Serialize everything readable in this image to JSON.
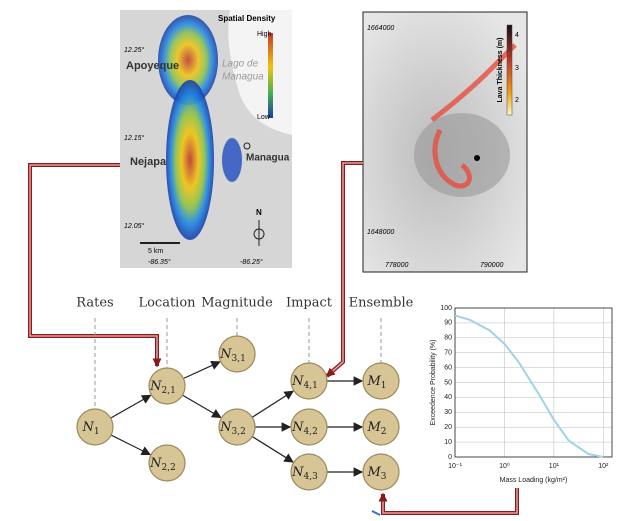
{
  "maps": [
    {
      "title": "Spatial Density",
      "high": "High",
      "low": "Low",
      "lat_ticks": [
        "12.25°",
        "12.15°",
        "12.05°"
      ],
      "lon_ticks": [
        "-86.35°",
        "-86.25°"
      ],
      "places": [
        "Apoyeque",
        "Lago de",
        "Managua",
        "Nejapa",
        "Managua"
      ],
      "scale": "5 km",
      "north": "N"
    },
    {
      "y_ticks": [
        "1664000",
        "1648000"
      ],
      "x_ticks": [
        "778000",
        "790000"
      ],
      "colorbar_title": "Lava Thickness (m)",
      "colorbar_ticks": [
        "4",
        "3",
        "2"
      ]
    }
  ],
  "network": {
    "columns": [
      "Rates",
      "Location",
      "Magnitude",
      "Impact",
      "Ensemble"
    ],
    "nodes": [
      {
        "base": "N",
        "sub": "1"
      },
      {
        "base": "N",
        "sub": "2,1"
      },
      {
        "base": "N",
        "sub": "2,2"
      },
      {
        "base": "N",
        "sub": "3,1"
      },
      {
        "base": "N",
        "sub": "3,2"
      },
      {
        "base": "N",
        "sub": "4,1"
      },
      {
        "base": "N",
        "sub": "4,2"
      },
      {
        "base": "N",
        "sub": "4,3"
      },
      {
        "base": "M",
        "sub": "1"
      },
      {
        "base": "M",
        "sub": "2"
      },
      {
        "base": "M",
        "sub": "3"
      }
    ]
  },
  "chart_data": {
    "type": "line",
    "xlabel": "Mass Loading (kg/m²)",
    "ylabel": "Exceedence Probability (%)",
    "x": [
      0.1,
      0.2,
      0.5,
      1,
      2,
      5,
      10,
      20,
      50,
      100
    ],
    "series": [
      {
        "color": "#9fd3e8",
        "values": [
          95,
          92,
          85,
          76,
          63,
          42,
          25,
          11,
          2,
          0
        ]
      }
    ],
    "xscale": "log",
    "xlim": [
      0.1,
      150
    ],
    "ylim": [
      0,
      100
    ],
    "xticks": [
      {
        "value": 0.1,
        "label": "10⁻¹"
      },
      {
        "value": 1,
        "label": "10⁰"
      },
      {
        "value": 10,
        "label": "10¹"
      },
      {
        "value": 100,
        "label": "10²"
      }
    ],
    "yticks": [
      0,
      10,
      20,
      30,
      40,
      50,
      60,
      70,
      80,
      90,
      100
    ],
    "grid": true
  }
}
